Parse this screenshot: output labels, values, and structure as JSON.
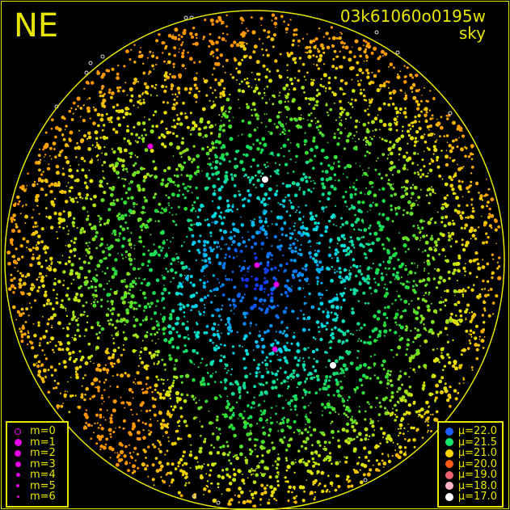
{
  "header": {
    "direction": "NE",
    "frame_id": "03k61060o0195w",
    "filter": "sky"
  },
  "colors": {
    "frame": "#e6e600",
    "magnitude_symbol": "#e600e6"
  },
  "magnitude_legend": [
    {
      "label": "m=0",
      "size": 8,
      "hollow": true
    },
    {
      "label": "m=1",
      "size": 9
    },
    {
      "label": "m=2",
      "size": 8
    },
    {
      "label": "m=3",
      "size": 7
    },
    {
      "label": "m=4",
      "size": 5
    },
    {
      "label": "m=5",
      "size": 4
    },
    {
      "label": "m=6",
      "size": 3
    }
  ],
  "brightness_legend": [
    {
      "label": "μ=22.0",
      "color": "#1a5cff"
    },
    {
      "label": "μ=21.5",
      "color": "#14e66e"
    },
    {
      "label": "μ=21.0",
      "color": "#ffd500"
    },
    {
      "label": "μ=20.0",
      "color": "#ff5a14"
    },
    {
      "label": "μ=19.0",
      "color": "#f06070"
    },
    {
      "label": "μ=18.0",
      "color": "#ffb4c8"
    },
    {
      "label": "μ=17.0",
      "color": "#ffffff"
    }
  ]
}
